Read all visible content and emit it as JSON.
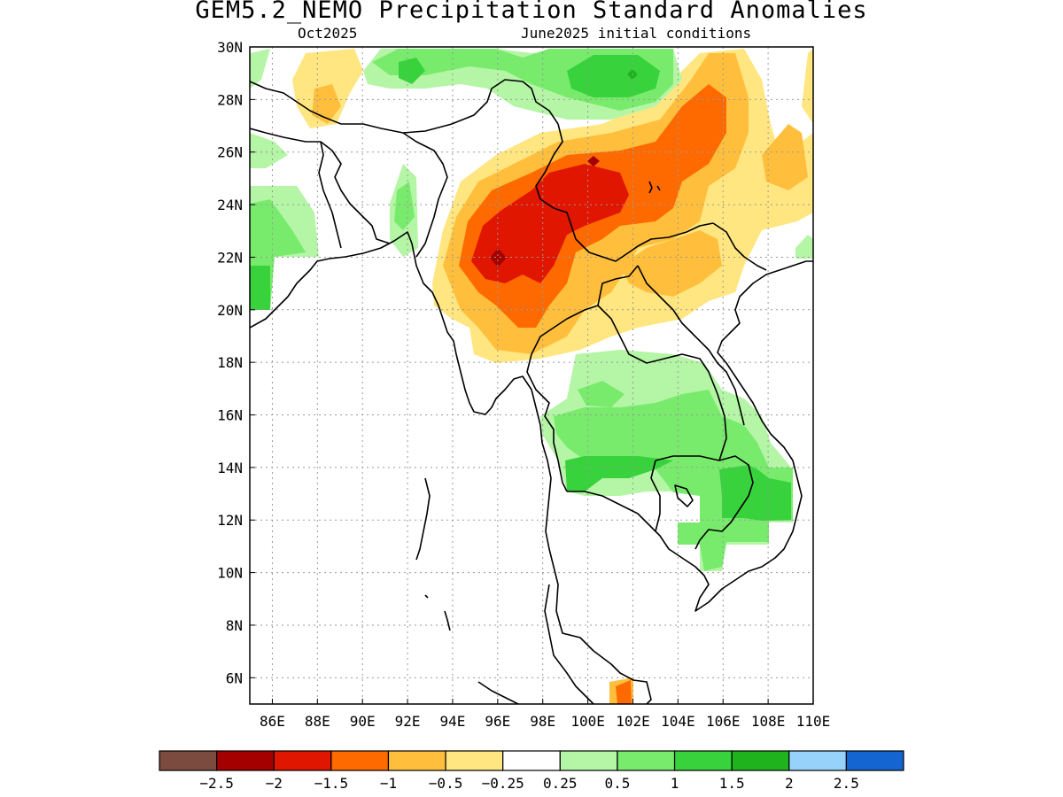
{
  "title": "GEM5.2_NEMO Precipitation Standard Anomalies",
  "valid_month": "Oct2025",
  "initial_conditions": "June2025 initial conditions",
  "map": {
    "lon_range": [
      85,
      110
    ],
    "lat_range": [
      5,
      30
    ],
    "lat_labels": [
      "30N",
      "28N",
      "26N",
      "24N",
      "22N",
      "20N",
      "18N",
      "16N",
      "14N",
      "12N",
      "10N",
      "8N",
      "6N"
    ],
    "lon_labels": [
      "86E",
      "88E",
      "90E",
      "92E",
      "94E",
      "96E",
      "98E",
      "100E",
      "102E",
      "104E",
      "106E",
      "108E",
      "110E"
    ],
    "grid": "dotted"
  },
  "colorbar": {
    "colors": [
      "#7a4b3e",
      "#a50000",
      "#e01600",
      "#ff6a00",
      "#ffbf3c",
      "#ffe680",
      "#ffffff",
      "#b4f5a6",
      "#78eb6c",
      "#37d23c",
      "#1fb41e",
      "#96d2fa",
      "#1464d2"
    ],
    "labels": [
      "−2.5",
      "−2",
      "−1.5",
      "−1",
      "−0.5",
      "−0.25",
      "0.25",
      "0.5",
      "1",
      "1.5",
      "2",
      "2.5"
    ]
  },
  "anomaly_patches": [
    {
      "level": "-2.5",
      "color": "#a50000",
      "area": "near 96E 22N"
    },
    {
      "level": "-2",
      "color": "#e01600",
      "area": "Myanmar / Yunnan border"
    },
    {
      "level": "-1.5",
      "color": "#ff6a00",
      "area": "central Myanmar to southern China"
    },
    {
      "level": "-1",
      "color": "#ffbf3c",
      "area": "northern Myanmar, Laos, southeast China"
    },
    {
      "level": "-0.5",
      "color": "#ffe680",
      "area": "Himalaya foothills, southern China"
    },
    {
      "level": "0.5",
      "color": "#b4f5a6",
      "area": "Thailand, Cambodia, Tibet"
    },
    {
      "level": "1",
      "color": "#78eb6c",
      "area": "central Thailand, Cambodia, Vietnam, Bangladesh west"
    },
    {
      "level": "1.5",
      "color": "#37d23c",
      "area": "Cambodia east, Tibet"
    }
  ]
}
